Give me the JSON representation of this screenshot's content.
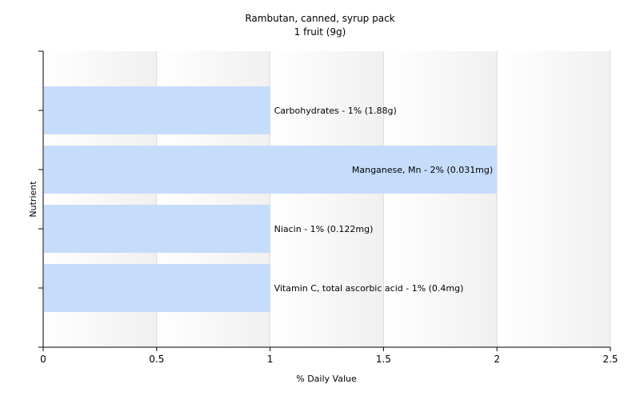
{
  "title": "Rambutan, canned, syrup pack",
  "subtitle": "1 fruit (9g)",
  "chart_data": {
    "type": "bar",
    "orientation": "horizontal",
    "title": "Rambutan, canned, syrup pack",
    "subtitle": "1 fruit (9g)",
    "xlabel": "% Daily Value",
    "ylabel": "Nutrient",
    "xlim": [
      0,
      2.5
    ],
    "xticks": [
      0,
      0.5,
      1,
      1.5,
      2,
      2.5
    ],
    "xtick_labels": [
      "0",
      "0.5",
      "1",
      "1.5",
      "2",
      "2.5"
    ],
    "grid": true,
    "bar_color": "#c6dcfb",
    "categories": [
      "Carbohydrates",
      "Manganese, Mn",
      "Niacin",
      "Vitamin C, total ascorbic acid"
    ],
    "values": [
      1,
      2,
      1,
      1
    ],
    "labels": [
      "Carbohydrates - 1% (1.88g)",
      "Manganese, Mn - 2% (0.031mg)",
      "Niacin - 1% (0.122mg)",
      "Vitamin C, total ascorbic acid - 1% (0.4mg)"
    ]
  }
}
